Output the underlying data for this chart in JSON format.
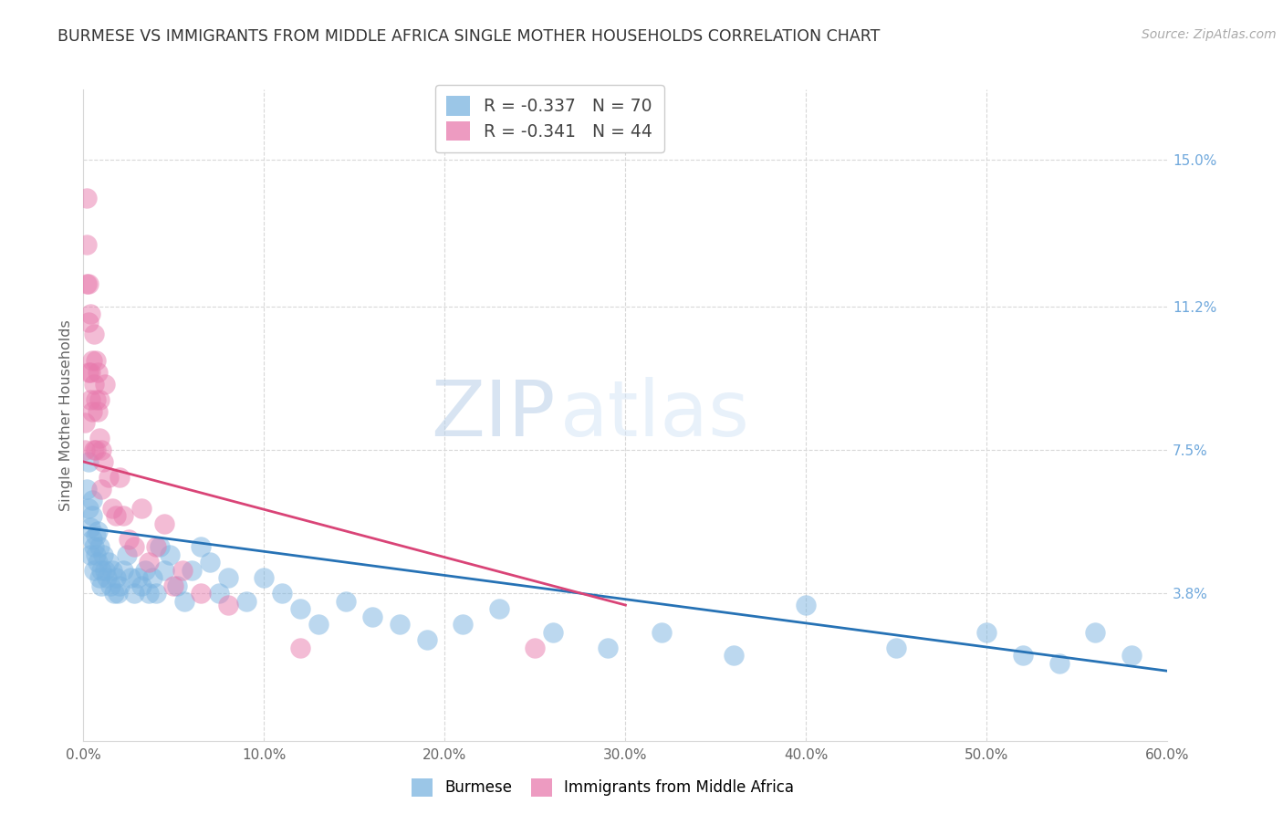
{
  "title": "BURMESE VS IMMIGRANTS FROM MIDDLE AFRICA SINGLE MOTHER HOUSEHOLDS CORRELATION CHART",
  "source": "Source: ZipAtlas.com",
  "ylabel": "Single Mother Households",
  "right_ytick_vals": [
    0.038,
    0.075,
    0.112,
    0.15
  ],
  "right_ytick_labels": [
    "3.8%",
    "7.5%",
    "11.2%",
    "15.0%"
  ],
  "xmin": 0.0,
  "xmax": 0.6,
  "ymin": 0.0,
  "ymax": 0.168,
  "series1_color": "#7ab3e0",
  "series2_color": "#e87aad",
  "series1_label": "Burmese",
  "series2_label": "Immigrants from Middle Africa",
  "series1_legend": "R = -0.337   N = 70",
  "series2_legend": "R = -0.341   N = 44",
  "watermark_zip": "ZIP",
  "watermark_atlas": "atlas",
  "blue_line_x": [
    0.0,
    0.6
  ],
  "blue_line_y": [
    0.055,
    0.018
  ],
  "pink_line_x": [
    0.0,
    0.3
  ],
  "pink_line_y": [
    0.072,
    0.035
  ],
  "burmese_x": [
    0.002,
    0.003,
    0.003,
    0.004,
    0.004,
    0.005,
    0.005,
    0.005,
    0.006,
    0.006,
    0.007,
    0.007,
    0.008,
    0.008,
    0.009,
    0.009,
    0.01,
    0.01,
    0.011,
    0.012,
    0.013,
    0.014,
    0.015,
    0.016,
    0.017,
    0.018,
    0.019,
    0.02,
    0.022,
    0.024,
    0.026,
    0.028,
    0.03,
    0.032,
    0.034,
    0.036,
    0.038,
    0.04,
    0.042,
    0.045,
    0.048,
    0.052,
    0.056,
    0.06,
    0.065,
    0.07,
    0.075,
    0.08,
    0.09,
    0.1,
    0.11,
    0.12,
    0.13,
    0.145,
    0.16,
    0.175,
    0.19,
    0.21,
    0.23,
    0.26,
    0.29,
    0.32,
    0.36,
    0.4,
    0.45,
    0.5,
    0.52,
    0.54,
    0.56,
    0.58
  ],
  "burmese_y": [
    0.065,
    0.072,
    0.06,
    0.055,
    0.048,
    0.058,
    0.052,
    0.062,
    0.05,
    0.044,
    0.048,
    0.053,
    0.046,
    0.054,
    0.042,
    0.05,
    0.044,
    0.04,
    0.048,
    0.044,
    0.042,
    0.046,
    0.04,
    0.044,
    0.038,
    0.042,
    0.038,
    0.04,
    0.044,
    0.048,
    0.042,
    0.038,
    0.042,
    0.04,
    0.044,
    0.038,
    0.042,
    0.038,
    0.05,
    0.044,
    0.048,
    0.04,
    0.036,
    0.044,
    0.05,
    0.046,
    0.038,
    0.042,
    0.036,
    0.042,
    0.038,
    0.034,
    0.03,
    0.036,
    0.032,
    0.03,
    0.026,
    0.03,
    0.034,
    0.028,
    0.024,
    0.028,
    0.022,
    0.035,
    0.024,
    0.028,
    0.022,
    0.02,
    0.028,
    0.022
  ],
  "africa_x": [
    0.001,
    0.001,
    0.002,
    0.002,
    0.002,
    0.003,
    0.003,
    0.003,
    0.004,
    0.004,
    0.004,
    0.005,
    0.005,
    0.006,
    0.006,
    0.006,
    0.007,
    0.007,
    0.007,
    0.008,
    0.008,
    0.009,
    0.009,
    0.01,
    0.01,
    0.011,
    0.012,
    0.014,
    0.016,
    0.018,
    0.02,
    0.022,
    0.025,
    0.028,
    0.032,
    0.036,
    0.04,
    0.045,
    0.05,
    0.055,
    0.065,
    0.08,
    0.12,
    0.25
  ],
  "africa_y": [
    0.075,
    0.082,
    0.14,
    0.128,
    0.118,
    0.108,
    0.095,
    0.118,
    0.095,
    0.11,
    0.088,
    0.098,
    0.085,
    0.105,
    0.092,
    0.075,
    0.098,
    0.088,
    0.075,
    0.085,
    0.095,
    0.078,
    0.088,
    0.075,
    0.065,
    0.072,
    0.092,
    0.068,
    0.06,
    0.058,
    0.068,
    0.058,
    0.052,
    0.05,
    0.06,
    0.046,
    0.05,
    0.056,
    0.04,
    0.044,
    0.038,
    0.035,
    0.024,
    0.024
  ]
}
